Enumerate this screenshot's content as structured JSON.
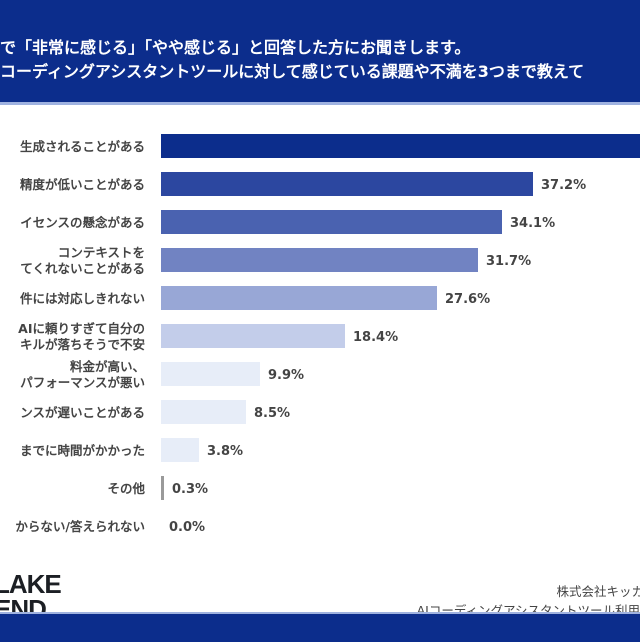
{
  "header": {
    "line1": "で「非常に感じる」「やや感じる」と回答した方にお聞きします。",
    "line2": "コーディングアシスタントツールに対して感じている課題や不満を3つまで教えて"
  },
  "chart_data": {
    "type": "bar",
    "orientation": "horizontal",
    "unit": "%",
    "categories": [
      [
        "生成されることがある"
      ],
      [
        "精度が低いことがある"
      ],
      [
        "イセンスの懸念がある"
      ],
      [
        "コンテキストを",
        "てくれないことがある"
      ],
      [
        "件には対応しきれない"
      ],
      [
        "AIに頼りすぎて自分の",
        "キルが落ちそうで不安"
      ],
      [
        "料金が高い、",
        "パフォーマンスが悪い"
      ],
      [
        "ンスが遅いことがある"
      ],
      [
        "までに時間がかかった"
      ],
      [
        "その他"
      ],
      [
        "からない/答えられない"
      ]
    ],
    "values": [
      null,
      37.2,
      34.1,
      31.7,
      27.6,
      18.4,
      9.9,
      8.5,
      3.8,
      0.3,
      0.0
    ],
    "labels": [
      "",
      "37.2%",
      "34.1%",
      "31.7%",
      "27.6%",
      "18.4%",
      "9.9%",
      "8.5%",
      "3.8%",
      "0.3%",
      "0.0%"
    ],
    "colors": [
      "#0c2d8c",
      "#2c47a0",
      "#4a62b0",
      "#7183c2",
      "#98a7d6",
      "#c3cdea",
      "#e7edf8",
      "#e7edf8",
      "#e7edf8",
      "#9a9a9a",
      "#e7edf8"
    ]
  },
  "footer": {
    "logo": [
      "LAKE",
      "END"
    ],
    "source1": "株式会社キッカ",
    "source2": "AIコーディングアシスタントツール利用"
  }
}
